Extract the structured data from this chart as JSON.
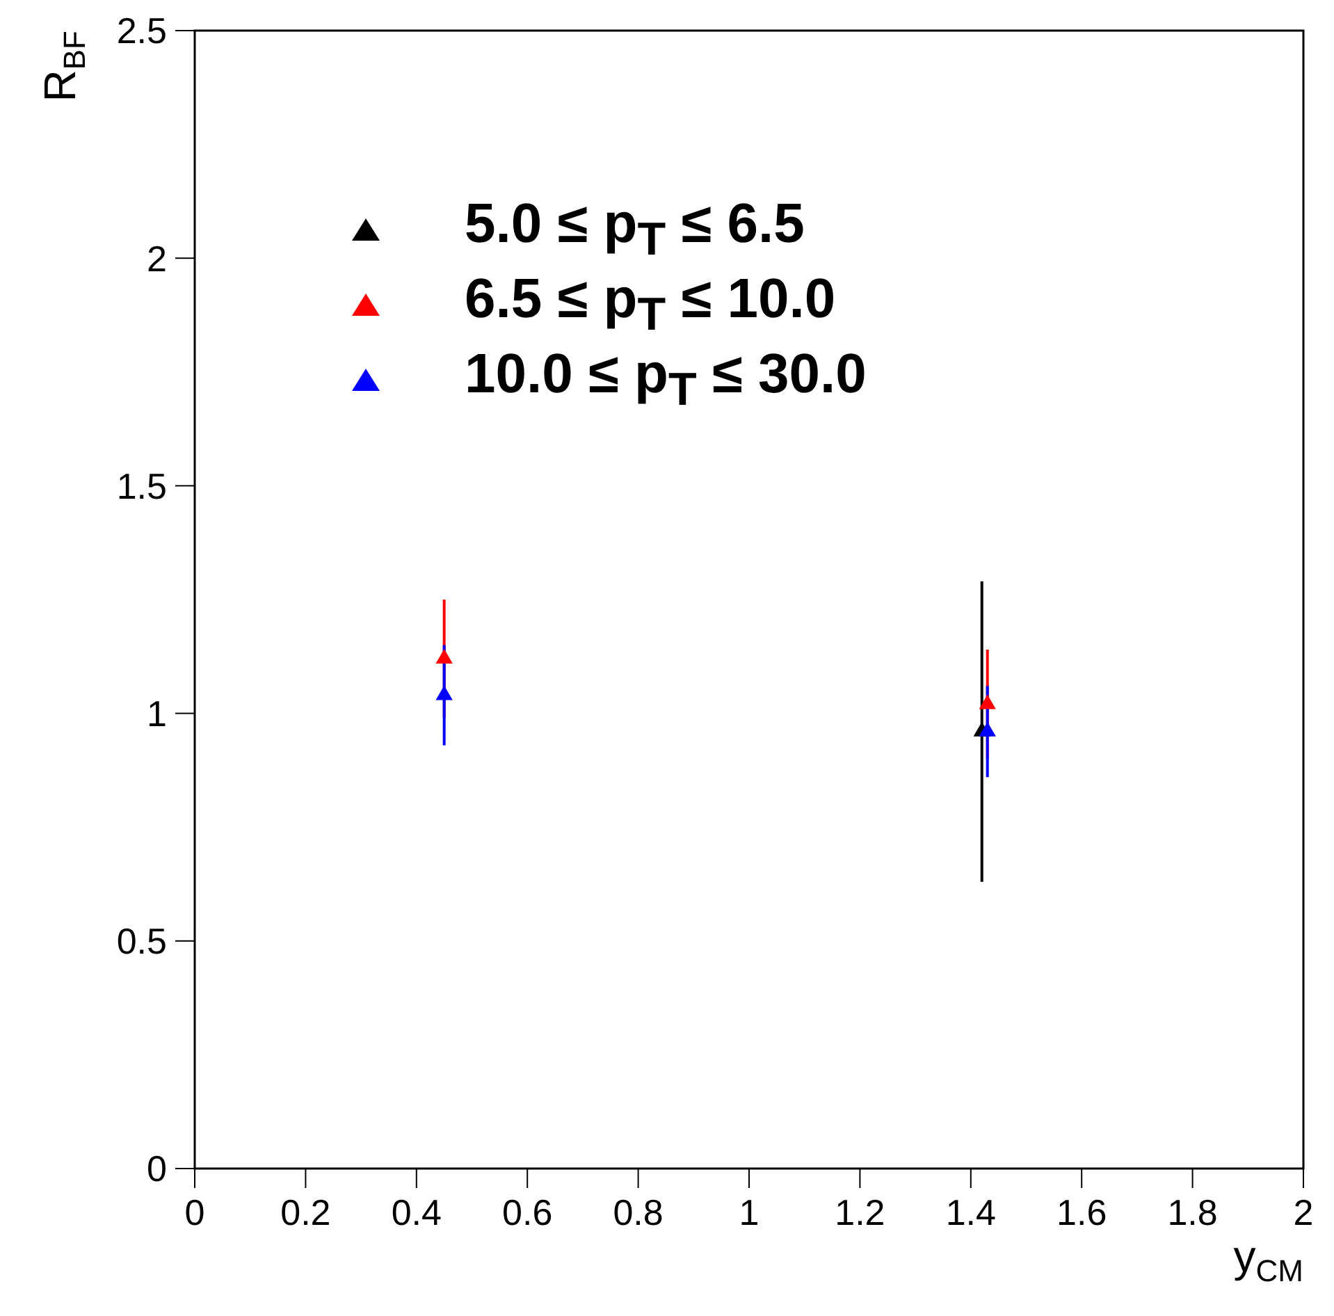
{
  "chart_data": {
    "type": "scatter",
    "xlabel": "y$_{CM}$",
    "ylabel": "R$_{BF}$",
    "xlim": [
      0,
      2
    ],
    "xticks": [
      0,
      0.2,
      0.4,
      0.6,
      0.8,
      1,
      1.2,
      1.4,
      1.6,
      1.8,
      2
    ],
    "ylim": [
      0,
      2.5
    ],
    "yticks": [
      0,
      0.5,
      1,
      1.5,
      2,
      2.5
    ],
    "marker": "triangle",
    "legend": "top left",
    "grid": false,
    "series": [
      {
        "name": "5.0 ≤ p$_{T}$ ≤ 6.5",
        "color": "#000000",
        "x": [
          1.42
        ],
        "values": [
          0.96
        ],
        "errors": [
          0.33
        ]
      },
      {
        "name": "6.5 ≤ p$_{T}$ ≤ 10.0",
        "color": "#ff0000",
        "x": [
          0.45,
          1.43
        ],
        "values": [
          1.12,
          1.02
        ],
        "errors": [
          0.13,
          0.12
        ]
      },
      {
        "name": "10.0 ≤ p$_{T}$ ≤ 30.0",
        "color": "#0000ff",
        "x": [
          0.45,
          1.43
        ],
        "values": [
          1.04,
          0.96
        ],
        "errors": [
          0.11,
          0.1
        ]
      }
    ]
  }
}
